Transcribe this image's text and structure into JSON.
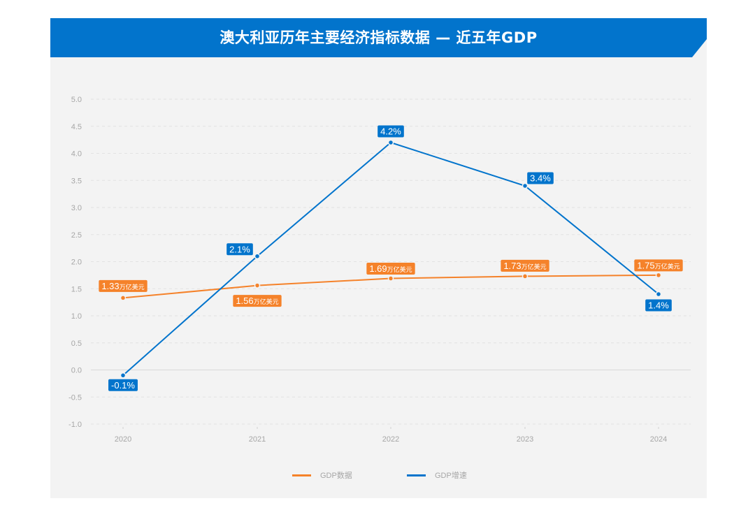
{
  "header": {
    "title": "澳大利亚历年主要经济指标数据 — 近五年GDP",
    "background": "#0274cc"
  },
  "colors": {
    "card_bg": "#f3f3f3",
    "gdp_data": "#f5822a",
    "gdp_growth": "#0274cc",
    "grid": "#dedede",
    "axis_text": "#a6a6a6"
  },
  "legend": {
    "items": [
      {
        "label": "GDP数据",
        "color": "#f5822a"
      },
      {
        "label": "GDP增速",
        "color": "#0274cc"
      }
    ]
  },
  "chart_data": {
    "type": "line",
    "title": "澳大利亚历年主要经济指标数据 — 近五年GDP",
    "xlabel": "",
    "ylabel": "",
    "categories": [
      "2020",
      "2021",
      "2022",
      "2023",
      "2024"
    ],
    "y_ticks": [
      "5.0",
      "4.5",
      "4.0",
      "3.5",
      "3.0",
      "2.5",
      "2.0",
      "1.5",
      "1.0",
      "0.5",
      "0.0",
      "-0.5",
      "-1.0"
    ],
    "ylim": [
      -1.0,
      5.0
    ],
    "grid": true,
    "legend_position": "bottom",
    "series": [
      {
        "name": "GDP数据",
        "values": [
          1.33,
          1.56,
          1.69,
          1.73,
          1.75
        ],
        "labels": [
          "1.33",
          "1.56",
          "1.69",
          "1.73",
          "1.75"
        ],
        "label_unit": "万亿美元",
        "color": "#f5822a"
      },
      {
        "name": "GDP增速",
        "values": [
          -0.1,
          2.1,
          4.2,
          3.4,
          1.4
        ],
        "labels": [
          "-0.1%",
          "2.1%",
          "4.2%",
          "3.4%",
          "1.4%"
        ],
        "color": "#0274cc"
      }
    ]
  }
}
